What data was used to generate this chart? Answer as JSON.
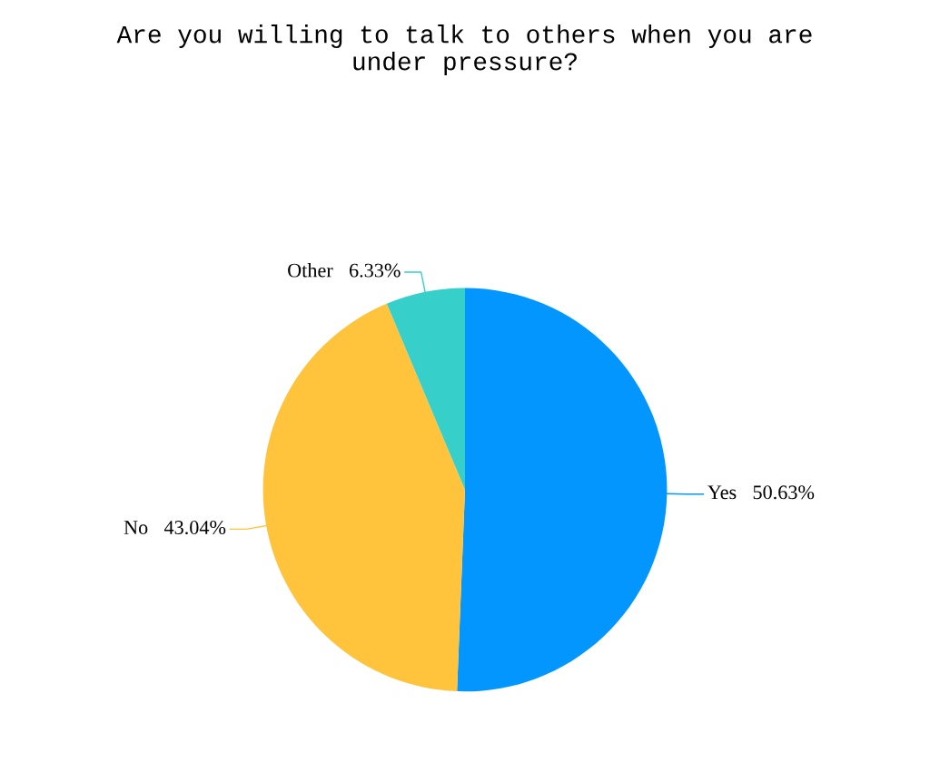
{
  "chart_data": {
    "type": "pie",
    "title": "Are you willing to talk to others when you are\nunder pressure?",
    "categories": [
      "Yes",
      "No",
      "Other"
    ],
    "values": [
      50.63,
      43.04,
      6.33
    ],
    "value_labels": [
      "50.63%",
      "43.04%",
      "6.33%"
    ],
    "colors": [
      "#0396ff",
      "#ffc33c",
      "#36cfc9"
    ]
  }
}
